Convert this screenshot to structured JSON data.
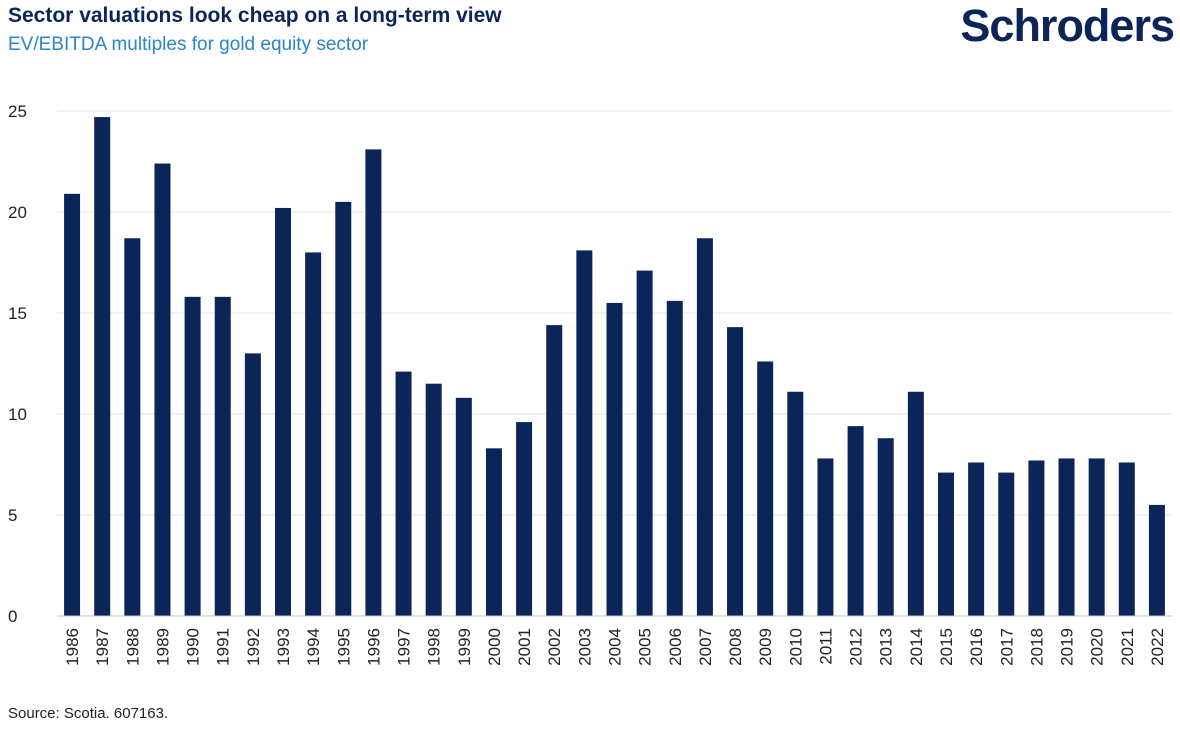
{
  "header": {
    "title": "Sector valuations look cheap on a long-term view",
    "subtitle": "EV/EBITDA multiples for gold equity sector",
    "logo_text": "Schroders"
  },
  "footer": {
    "source": "Source: Scotia. 607163."
  },
  "colors": {
    "bar": "#0b2559",
    "grid": "#e3e3e3",
    "title": "#0b2559",
    "subtitle": "#2a86c7"
  },
  "chart_data": {
    "type": "bar",
    "title": "Sector valuations look cheap on a long-term view",
    "subtitle": "EV/EBITDA multiples for gold equity sector",
    "xlabel": "",
    "ylabel": "",
    "ylim": [
      0,
      25
    ],
    "yticks": [
      0,
      5,
      10,
      15,
      20,
      25
    ],
    "grid": true,
    "categories": [
      "1986",
      "1987",
      "1988",
      "1989",
      "1990",
      "1991",
      "1992",
      "1993",
      "1994",
      "1995",
      "1996",
      "1997",
      "1998",
      "1999",
      "2000",
      "2001",
      "2002",
      "2003",
      "2004",
      "2005",
      "2006",
      "2007",
      "2008",
      "2009",
      "2010",
      "2011",
      "2012",
      "2013",
      "2014",
      "2015",
      "2016",
      "2017",
      "2018",
      "2019",
      "2020",
      "2021",
      "2022"
    ],
    "values": [
      20.9,
      24.7,
      18.7,
      22.4,
      15.8,
      15.8,
      13.0,
      20.2,
      18.0,
      20.5,
      23.1,
      12.1,
      11.5,
      10.8,
      8.3,
      9.6,
      14.4,
      18.1,
      15.5,
      17.1,
      15.6,
      18.7,
      14.3,
      12.6,
      11.1,
      7.8,
      9.4,
      8.8,
      11.1,
      7.1,
      7.6,
      7.1,
      7.7,
      7.8,
      7.8,
      7.6,
      5.5
    ]
  }
}
